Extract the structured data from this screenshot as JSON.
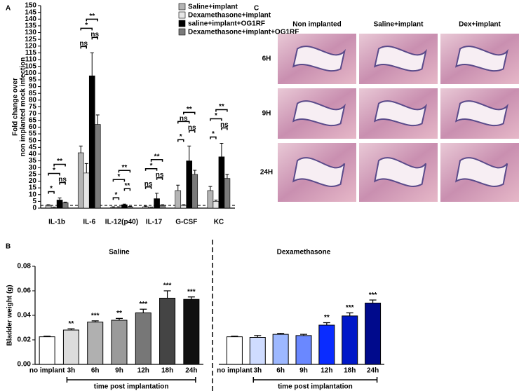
{
  "chart_data": [
    {
      "type": "grouped_bar",
      "panel_label": "A",
      "ylabel": [
        "Fold change over",
        "non implanted mock infection"
      ],
      "categories": [
        "IL-1b",
        "IL-6",
        "IL-12(p40)",
        "IL-17",
        "G-CSF",
        "KC"
      ],
      "series": [
        {
          "name": "Saline+implant",
          "color": "#b4b4b4",
          "values": [
            2,
            41,
            0.5,
            1,
            13,
            13
          ],
          "errors": [
            0.5,
            5,
            0.5,
            0.5,
            4,
            3
          ]
        },
        {
          "name": "Dexamethasone+implant",
          "color": "#e6e6e6",
          "values": [
            0.5,
            26,
            0.5,
            0.5,
            2,
            5
          ],
          "errors": [
            0.3,
            7,
            0.5,
            0.3,
            0.5,
            1
          ]
        },
        {
          "name": "saline+implant+OG1RF",
          "color": "#000000",
          "values": [
            6,
            98,
            2.5,
            7,
            35,
            38
          ],
          "errors": [
            1.5,
            17,
            0.5,
            4,
            11,
            10
          ]
        },
        {
          "name": "Dexamethasone+implant+OG1RF",
          "color": "#7a7a7a",
          "values": [
            4,
            62,
            1,
            2,
            25,
            22
          ],
          "errors": [
            0.5,
            7,
            0.3,
            0.5,
            3,
            3
          ]
        }
      ],
      "significance": [
        [
          {
            "pair": [
              0,
              1
            ],
            "label": "*"
          },
          {
            "pair": [
              2,
              3
            ],
            "label": "ns"
          },
          {
            "pair": [
              0,
              2
            ],
            "label": "*"
          },
          {
            "pair": [
              1,
              3
            ],
            "label": "**"
          }
        ],
        [
          {
            "pair": [
              0,
              1
            ],
            "label": "ns"
          },
          {
            "pair": [
              2,
              3
            ],
            "label": "ns"
          },
          {
            "pair": [
              0,
              2
            ],
            "label": "*"
          },
          {
            "pair": [
              1,
              3
            ],
            "label": "**"
          }
        ],
        [
          {
            "pair": [
              0,
              1
            ],
            "label": "*"
          },
          {
            "pair": [
              2,
              3
            ],
            "label": "**"
          },
          {
            "pair": [
              0,
              2
            ],
            "label": "*"
          },
          {
            "pair": [
              1,
              3
            ],
            "label": "**"
          }
        ],
        [
          {
            "pair": [
              0,
              1
            ],
            "label": "ns"
          },
          {
            "pair": [
              2,
              3
            ],
            "label": "ns"
          },
          {
            "pair": [
              0,
              2
            ],
            "label": "*"
          },
          {
            "pair": [
              1,
              3
            ],
            "label": "**"
          }
        ],
        [
          {
            "pair": [
              0,
              1
            ],
            "label": "*"
          },
          {
            "pair": [
              2,
              3
            ],
            "label": "ns"
          },
          {
            "pair": [
              0,
              2
            ],
            "label": "ns"
          },
          {
            "pair": [
              1,
              3
            ],
            "label": "**"
          }
        ],
        [
          {
            "pair": [
              0,
              1
            ],
            "label": "*"
          },
          {
            "pair": [
              2,
              3
            ],
            "label": "ns"
          },
          {
            "pair": [
              0,
              2
            ],
            "label": "*"
          },
          {
            "pair": [
              1,
              3
            ],
            "label": "**"
          }
        ]
      ],
      "reference_line": 2,
      "ylim": [
        0,
        150
      ],
      "yticks": [
        0,
        5,
        10,
        15,
        20,
        25,
        30,
        35,
        40,
        45,
        50,
        55,
        60,
        65,
        70,
        75,
        80,
        85,
        90,
        95,
        100,
        105,
        110,
        115,
        120,
        125,
        130,
        135,
        140,
        145,
        150
      ]
    },
    {
      "type": "bar",
      "panel_label": "B",
      "title": "Saline",
      "ylabel": "Bladder weight (g)",
      "show_y_axis": true,
      "categories": [
        "no implant",
        "3h",
        "6h",
        "9h",
        "12h",
        "18h",
        "24h"
      ],
      "values": [
        0.0225,
        0.028,
        0.0345,
        0.036,
        0.042,
        0.054,
        0.053
      ],
      "errors": [
        0.0005,
        0.001,
        0.001,
        0.0015,
        0.003,
        0.006,
        0.002
      ],
      "colors": [
        "#ffffff",
        "#dcdcdc",
        "#b0b0b0",
        "#9a9a9a",
        "#777777",
        "#444444",
        "#111111"
      ],
      "significance": [
        null,
        "**",
        "***",
        "**",
        "***",
        "***",
        "***"
      ],
      "xlabel": "time post implantation",
      "ylim": [
        0,
        0.08
      ],
      "yticks": [
        {
          "value": 0,
          "label": "0.00"
        },
        0.02,
        0.04,
        0.06,
        0.08
      ]
    },
    {
      "type": "bar",
      "title": "Dexamethasone",
      "show_y_axis": false,
      "categories": [
        "no implant",
        "3h",
        "6h",
        "9h",
        "12h",
        "18h",
        "24h"
      ],
      "values": [
        0.0225,
        0.022,
        0.0245,
        0.0235,
        0.032,
        0.0395,
        0.05
      ],
      "errors": [
        0.0005,
        0.0015,
        0.0008,
        0.001,
        0.002,
        0.0025,
        0.0025
      ],
      "colors": [
        "#ffffff",
        "#cfdcff",
        "#9db8ff",
        "#6a88ff",
        "#0a2cff",
        "#0018c8",
        "#000a8c"
      ],
      "significance": [
        null,
        null,
        null,
        null,
        "**",
        "***",
        "***"
      ],
      "xlabel": "time post implantation",
      "ylim": [
        0,
        0.08
      ],
      "yticks": [
        {
          "value": 0,
          "label": "0.00"
        },
        0.02,
        0.04,
        0.06,
        0.08
      ]
    }
  ],
  "histology": {
    "panel_label": "C",
    "columns": [
      "Non implanted",
      "Saline+implant",
      "Dex+implant"
    ],
    "rows": [
      "6H",
      "9H",
      "24H"
    ]
  }
}
